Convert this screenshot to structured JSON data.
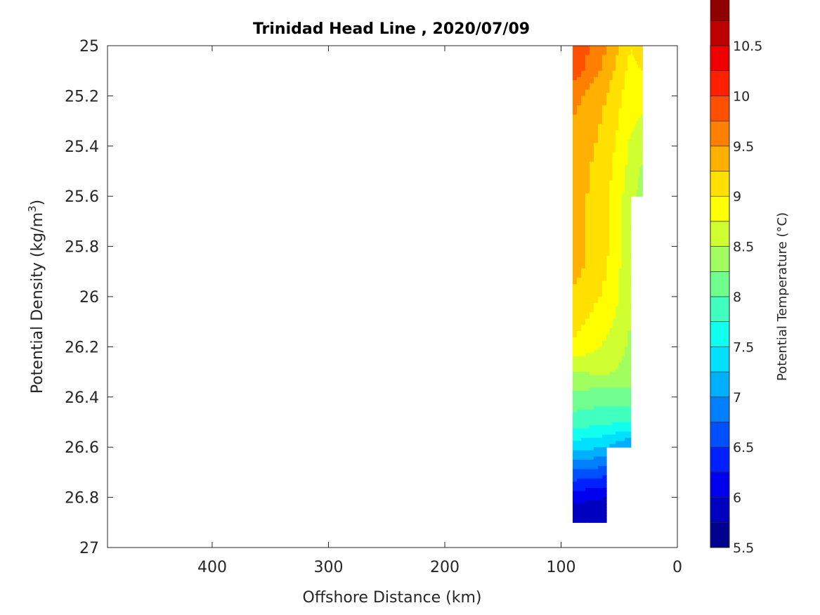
{
  "chart_data": {
    "type": "heatmap",
    "subtype": "filled-contour section",
    "title": "Trinidad Head Line , 2020/07/09",
    "xlabel": "Offshore Distance (km)",
    "ylabel": "Potential Density (kg/m",
    "ylabel_superscript": "3",
    "ylabel_suffix": ")",
    "colorbar_label": "Potential Temperature (°C)",
    "x_reversed": true,
    "y_reversed": true,
    "xlim": [
      490,
      0
    ],
    "ylim": [
      25,
      27
    ],
    "x_ticks": [
      400,
      300,
      200,
      100,
      0
    ],
    "y_ticks": [
      "25",
      "25.2",
      "25.4",
      "25.6",
      "25.8",
      "26",
      "26.2",
      "26.4",
      "26.6",
      "26.8",
      "27"
    ],
    "colorbar_ticks": [
      "10.5",
      "10",
      "9.5",
      "9",
      "8.5",
      "8",
      "7.5",
      "7",
      "6.5",
      "6",
      "5.5"
    ],
    "colorbar_range": [
      5.5,
      10.5
    ],
    "contour_step": 0.25,
    "colormap": "jet",
    "level_colors": [
      "#00008F",
      "#0000BF",
      "#0000EF",
      "#0020FF",
      "#0050FF",
      "#0080FF",
      "#00B0FF",
      "#00E0FF",
      "#10FFEF",
      "#40FFBF",
      "#70FF8F",
      "#A0FF5F",
      "#CFFF30",
      "#FFFF00",
      "#FFE000",
      "#FFB000",
      "#FF8000",
      "#FF5000",
      "#FF2000",
      "#EF0000",
      "#BF0000",
      "#8F0000"
    ],
    "stations_x_km": [
      90,
      61,
      40,
      30
    ],
    "density_levels": [
      25.0,
      25.1,
      25.2,
      25.3,
      25.4,
      25.5,
      25.6,
      25.7,
      25.8,
      25.9,
      26.0,
      26.1,
      26.2,
      26.3,
      26.4,
      26.5,
      26.6,
      26.7,
      26.8,
      26.9
    ],
    "station_max_density": [
      26.9,
      26.9,
      26.6,
      25.6
    ],
    "temperature_grid": [
      [
        10.0,
        9.5,
        9.0,
        9.2
      ],
      [
        9.9,
        9.4,
        8.9,
        9.0
      ],
      [
        9.6,
        9.25,
        8.85,
        8.9
      ],
      [
        9.5,
        9.2,
        8.8,
        8.7
      ],
      [
        9.45,
        9.15,
        8.7,
        8.6
      ],
      [
        9.4,
        9.1,
        8.65,
        8.45
      ],
      [
        9.4,
        9.05,
        8.6,
        8.4
      ],
      [
        9.4,
        9.05,
        8.55,
        null
      ],
      [
        9.4,
        9.05,
        8.55,
        null
      ],
      [
        9.35,
        9.0,
        8.55,
        null
      ],
      [
        9.2,
        8.95,
        8.55,
        null
      ],
      [
        9.1,
        8.85,
        8.5,
        null
      ],
      [
        8.95,
        8.7,
        8.45,
        null
      ],
      [
        8.5,
        8.55,
        8.4,
        null
      ],
      [
        8.15,
        8.1,
        8.15,
        null
      ],
      [
        7.9,
        7.8,
        7.75,
        null
      ],
      [
        7.35,
        7.25,
        6.95,
        null
      ],
      [
        6.7,
        6.6,
        null,
        null
      ],
      [
        6.1,
        6.0,
        null,
        null
      ],
      [
        5.75,
        5.75,
        null,
        null
      ]
    ]
  }
}
